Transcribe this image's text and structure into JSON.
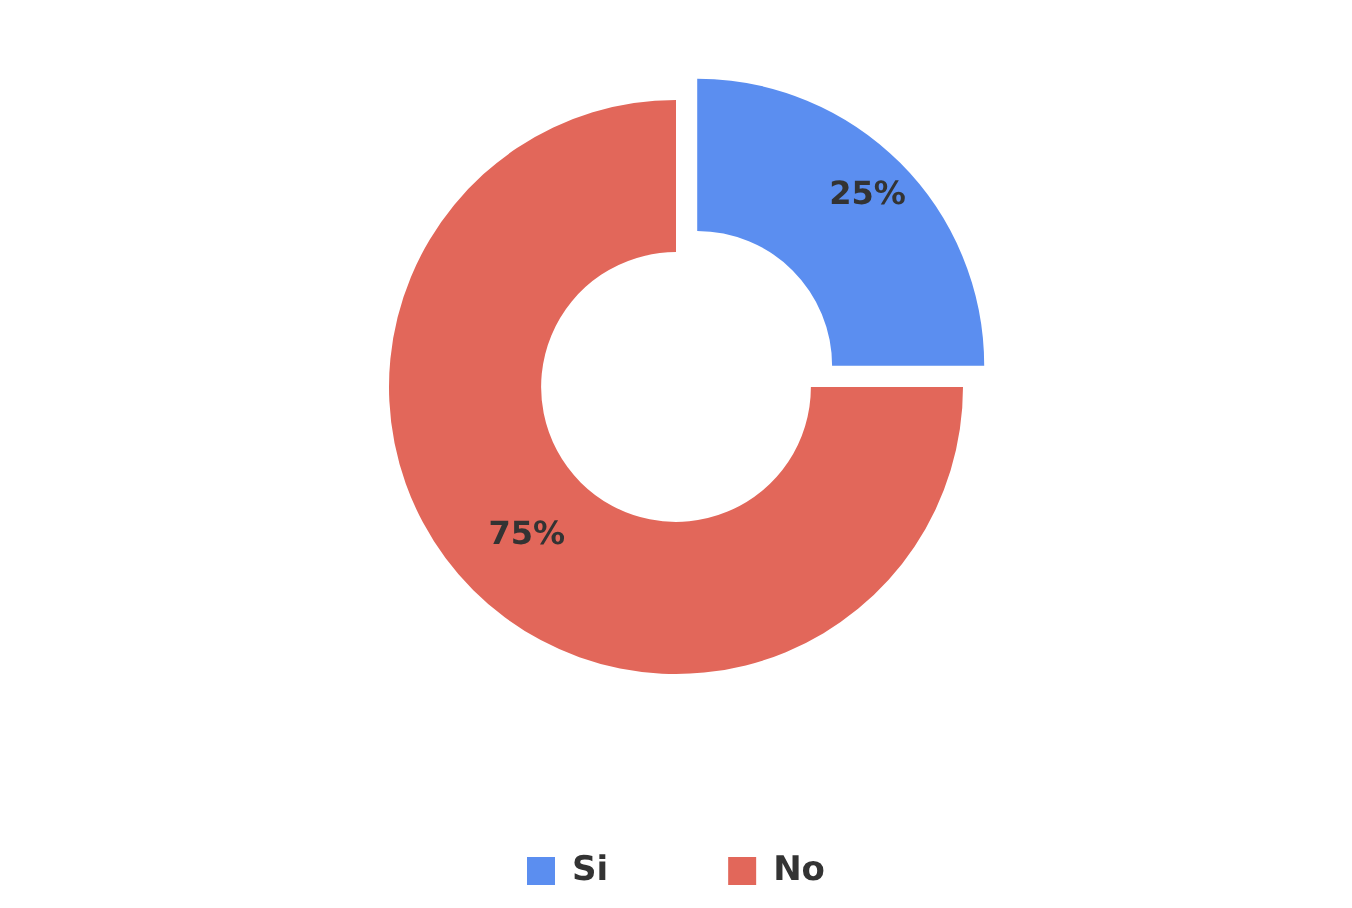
{
  "chart_data": {
    "type": "donut",
    "categories": [
      "Si",
      "No"
    ],
    "values": [
      25,
      75
    ],
    "colors": [
      "#5b8ef0",
      "#e2675a"
    ],
    "value_labels": [
      "25%",
      "75%"
    ],
    "legend": "bottom"
  }
}
